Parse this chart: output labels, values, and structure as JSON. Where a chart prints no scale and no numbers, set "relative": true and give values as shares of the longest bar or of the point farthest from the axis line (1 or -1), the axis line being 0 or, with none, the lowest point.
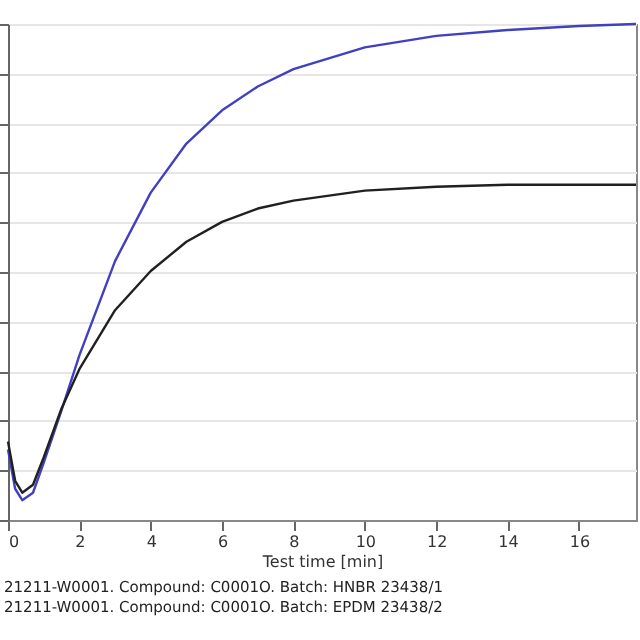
{
  "chart_data": {
    "type": "line",
    "relative": true,
    "xlabel": "Test time [min]",
    "x": [
      0,
      0.2,
      0.4,
      0.7,
      1,
      1.5,
      2,
      3,
      4,
      5,
      6,
      7,
      8,
      10,
      12,
      14,
      16,
      17.6
    ],
    "series": [
      {
        "color": "#4040c0",
        "values": [
          0.142,
          0.063,
          0.04,
          0.055,
          0.115,
          0.221,
          0.332,
          0.522,
          0.66,
          0.759,
          0.826,
          0.874,
          0.909,
          0.953,
          0.976,
          0.988,
          0.996,
          1
        ]
      },
      {
        "color": "#202020",
        "values": [
          0.158,
          0.079,
          0.055,
          0.071,
          0.126,
          0.225,
          0.304,
          0.423,
          0.502,
          0.561,
          0.601,
          0.628,
          0.644,
          0.664,
          0.672,
          0.676,
          0.676,
          0.676
        ]
      }
    ],
    "xlim": [
      0,
      17.6
    ],
    "xticks": [
      0,
      2,
      4,
      6,
      8,
      10,
      12,
      14,
      16
    ],
    "grid": "y",
    "tick_labels": "x",
    "annotations": [
      "21211-W0001. Compound: C0001O. Batch: HNBR 23438/1",
      "21211-W0001. Compound: C0001O. Batch: EPDM 23438/2"
    ]
  }
}
